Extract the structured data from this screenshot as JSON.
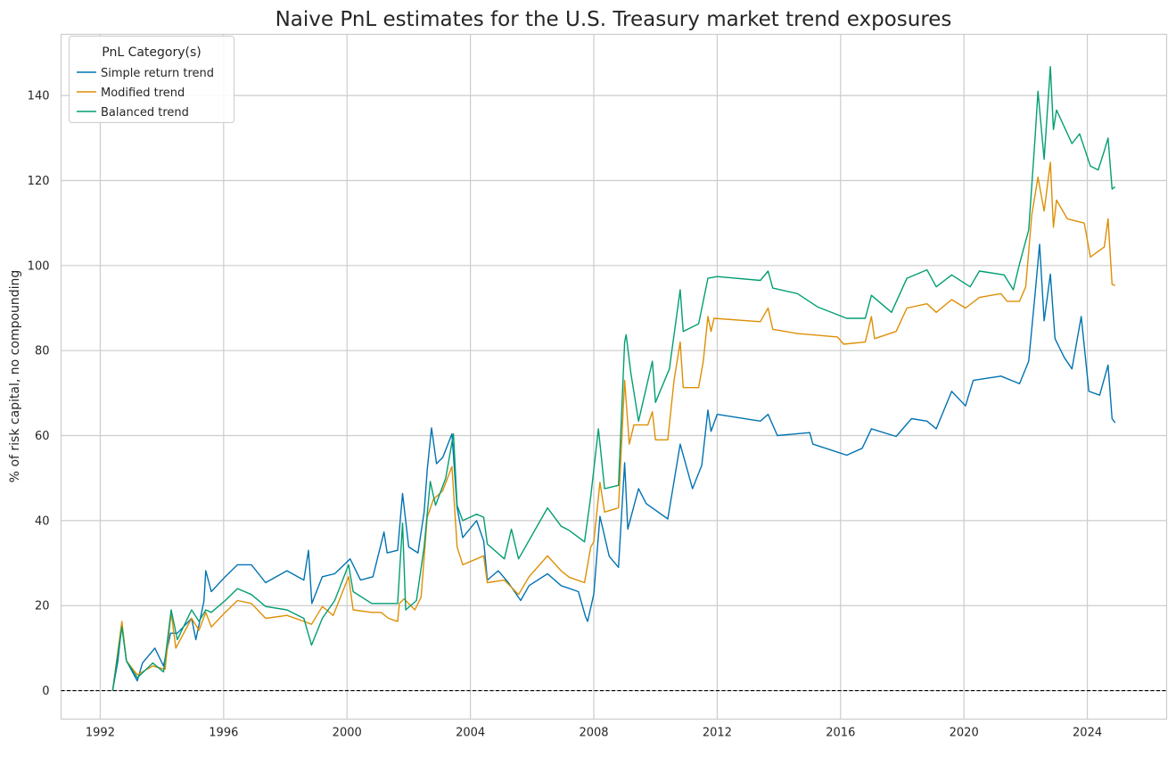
{
  "chart_data": {
    "type": "line",
    "title": "Naive PnL estimates for the U.S. Treasury market trend exposures",
    "xlabel": "",
    "ylabel": "% of risk capital, no compounding",
    "xlim": [
      1990.73,
      2026.57
    ],
    "ylim": [
      -6.7,
      154.4
    ],
    "x_ticks": [
      1992,
      1996,
      2000,
      2004,
      2008,
      2012,
      2016,
      2020,
      2024
    ],
    "x_tick_labels": [
      "1992",
      "1996",
      "2000",
      "2004",
      "2008",
      "2012",
      "2016",
      "2020",
      "2024"
    ],
    "y_ticks": [
      0,
      20,
      40,
      60,
      80,
      100,
      120,
      140
    ],
    "y_tick_labels": [
      "0",
      "20",
      "40",
      "60",
      "80",
      "100",
      "120",
      "140"
    ],
    "grid": true,
    "reference_line": {
      "y": 0,
      "style": "dashed",
      "color": "#000000"
    },
    "legend": {
      "title": "PnL Category(s)",
      "placement": "top-left"
    },
    "series": [
      {
        "name": "Simple return trend",
        "color": "#0173b2",
        "points": [
          [
            1992.4,
            0
          ],
          [
            1992.57,
            7
          ],
          [
            1992.7,
            15.6
          ],
          [
            1992.85,
            7
          ],
          [
            1993.2,
            2.3
          ],
          [
            1993.37,
            6.5
          ],
          [
            1993.77,
            10
          ],
          [
            1994.05,
            5.8
          ],
          [
            1994.28,
            13.5
          ],
          [
            1994.5,
            13.5
          ],
          [
            1994.96,
            17
          ],
          [
            1995.1,
            12
          ],
          [
            1995.36,
            21
          ],
          [
            1995.42,
            28.2
          ],
          [
            1995.6,
            23.3
          ],
          [
            1996.05,
            26.8
          ],
          [
            1996.45,
            29.6
          ],
          [
            1996.9,
            29.6
          ],
          [
            1997.36,
            25.4
          ],
          [
            1998.05,
            28.2
          ],
          [
            1998.6,
            26
          ],
          [
            1998.75,
            33
          ],
          [
            1998.86,
            20.5
          ],
          [
            1999.2,
            26.8
          ],
          [
            1999.6,
            27.5
          ],
          [
            2000.1,
            31
          ],
          [
            2000.44,
            26
          ],
          [
            2000.84,
            26.8
          ],
          [
            2001.2,
            37.3
          ],
          [
            2001.3,
            32.4
          ],
          [
            2001.64,
            33
          ],
          [
            2001.8,
            46.4
          ],
          [
            2002.0,
            33.8
          ],
          [
            2002.3,
            32.4
          ],
          [
            2002.5,
            42
          ],
          [
            2002.6,
            52
          ],
          [
            2002.74,
            61.8
          ],
          [
            2002.9,
            53.4
          ],
          [
            2003.1,
            54.8
          ],
          [
            2003.4,
            60.4
          ],
          [
            2003.57,
            43
          ],
          [
            2003.75,
            36
          ],
          [
            2004.2,
            40
          ],
          [
            2004.43,
            35.2
          ],
          [
            2004.55,
            26
          ],
          [
            2004.9,
            28.2
          ],
          [
            2005.23,
            25.4
          ],
          [
            2005.63,
            21.2
          ],
          [
            2005.9,
            24.7
          ],
          [
            2006.5,
            27.5
          ],
          [
            2006.94,
            24.7
          ],
          [
            2007.5,
            23.3
          ],
          [
            2007.73,
            17.4
          ],
          [
            2007.8,
            16.3
          ],
          [
            2008.0,
            22.7
          ],
          [
            2008.2,
            41
          ],
          [
            2008.5,
            31.6
          ],
          [
            2008.8,
            29
          ],
          [
            2009.0,
            53.6
          ],
          [
            2009.1,
            38
          ],
          [
            2009.45,
            47.5
          ],
          [
            2009.7,
            44
          ],
          [
            2010.4,
            40.4
          ],
          [
            2010.8,
            58
          ],
          [
            2011.2,
            47.5
          ],
          [
            2011.5,
            53
          ],
          [
            2011.7,
            66
          ],
          [
            2011.8,
            61
          ],
          [
            2012.0,
            65
          ],
          [
            2013.4,
            63.4
          ],
          [
            2013.65,
            65
          ],
          [
            2013.95,
            60
          ],
          [
            2015.0,
            60.7
          ],
          [
            2015.1,
            58
          ],
          [
            2016.2,
            55.4
          ],
          [
            2016.7,
            57
          ],
          [
            2017.0,
            61.6
          ],
          [
            2017.8,
            59.8
          ],
          [
            2018.3,
            64
          ],
          [
            2018.8,
            63.4
          ],
          [
            2019.1,
            61.6
          ],
          [
            2019.6,
            70.4
          ],
          [
            2020.05,
            67
          ],
          [
            2020.3,
            73
          ],
          [
            2021.2,
            74
          ],
          [
            2021.8,
            72.2
          ],
          [
            2022.1,
            77.5
          ],
          [
            2022.3,
            93
          ],
          [
            2022.45,
            105
          ],
          [
            2022.6,
            87
          ],
          [
            2022.8,
            98
          ],
          [
            2022.95,
            82.8
          ],
          [
            2023.25,
            78.4
          ],
          [
            2023.5,
            75.7
          ],
          [
            2023.8,
            88
          ],
          [
            2024.05,
            70.4
          ],
          [
            2024.4,
            69.5
          ],
          [
            2024.67,
            76.6
          ],
          [
            2024.8,
            64
          ],
          [
            2024.9,
            63
          ]
        ]
      },
      {
        "name": "Modified trend",
        "color": "#de8f05",
        "points": [
          [
            1992.4,
            0
          ],
          [
            1992.7,
            16.3
          ],
          [
            1992.85,
            7
          ],
          [
            1993.2,
            3.7
          ],
          [
            1993.7,
            5.8
          ],
          [
            1994.1,
            5
          ],
          [
            1994.3,
            18.4
          ],
          [
            1994.45,
            10
          ],
          [
            1994.96,
            17
          ],
          [
            1995.2,
            14.2
          ],
          [
            1995.42,
            18.4
          ],
          [
            1995.6,
            15
          ],
          [
            1996.05,
            18.4
          ],
          [
            1996.45,
            21.2
          ],
          [
            1996.9,
            20.5
          ],
          [
            1997.36,
            17
          ],
          [
            1998.05,
            17.7
          ],
          [
            1998.6,
            16.3
          ],
          [
            1998.85,
            15.6
          ],
          [
            1999.2,
            19.8
          ],
          [
            1999.55,
            17.7
          ],
          [
            2000.05,
            26.8
          ],
          [
            2000.2,
            19
          ],
          [
            2000.8,
            18.4
          ],
          [
            2001.1,
            18.4
          ],
          [
            2001.35,
            17
          ],
          [
            2001.64,
            16.3
          ],
          [
            2001.7,
            20.5
          ],
          [
            2001.85,
            21.6
          ],
          [
            2002.2,
            19
          ],
          [
            2002.4,
            22
          ],
          [
            2002.6,
            40.8
          ],
          [
            2002.8,
            45
          ],
          [
            2003.1,
            47
          ],
          [
            2003.4,
            52.7
          ],
          [
            2003.57,
            33.8
          ],
          [
            2003.75,
            29.6
          ],
          [
            2004.2,
            31
          ],
          [
            2004.43,
            31.7
          ],
          [
            2004.55,
            25.4
          ],
          [
            2005.1,
            26
          ],
          [
            2005.56,
            22.6
          ],
          [
            2005.9,
            26.8
          ],
          [
            2006.5,
            31.7
          ],
          [
            2006.94,
            28.2
          ],
          [
            2007.2,
            26.7
          ],
          [
            2007.7,
            25.4
          ],
          [
            2007.9,
            33.8
          ],
          [
            2008.0,
            35
          ],
          [
            2008.2,
            49
          ],
          [
            2008.35,
            42
          ],
          [
            2008.8,
            43
          ],
          [
            2009.0,
            73
          ],
          [
            2009.15,
            58
          ],
          [
            2009.3,
            62.5
          ],
          [
            2009.75,
            62.5
          ],
          [
            2009.9,
            65.6
          ],
          [
            2010.0,
            59
          ],
          [
            2010.4,
            59
          ],
          [
            2010.6,
            73
          ],
          [
            2010.8,
            82
          ],
          [
            2010.9,
            71.3
          ],
          [
            2011.4,
            71.3
          ],
          [
            2011.55,
            77.5
          ],
          [
            2011.7,
            88
          ],
          [
            2011.8,
            84.5
          ],
          [
            2011.9,
            87.6
          ],
          [
            2013.4,
            86.8
          ],
          [
            2013.65,
            90
          ],
          [
            2013.8,
            85
          ],
          [
            2014.6,
            84
          ],
          [
            2015.9,
            83.2
          ],
          [
            2016.1,
            81.5
          ],
          [
            2016.8,
            82
          ],
          [
            2017.0,
            88
          ],
          [
            2017.1,
            82.8
          ],
          [
            2017.8,
            84.5
          ],
          [
            2018.15,
            90
          ],
          [
            2018.8,
            91
          ],
          [
            2019.1,
            89
          ],
          [
            2019.6,
            92
          ],
          [
            2020.05,
            90
          ],
          [
            2020.5,
            92.5
          ],
          [
            2021.2,
            93.4
          ],
          [
            2021.4,
            91.6
          ],
          [
            2021.8,
            91.6
          ],
          [
            2022.0,
            95
          ],
          [
            2022.2,
            112
          ],
          [
            2022.4,
            120.8
          ],
          [
            2022.6,
            112.8
          ],
          [
            2022.8,
            124.3
          ],
          [
            2022.9,
            109
          ],
          [
            2023.0,
            115.4
          ],
          [
            2023.35,
            111
          ],
          [
            2023.9,
            110
          ],
          [
            2024.1,
            102
          ],
          [
            2024.55,
            104.4
          ],
          [
            2024.67,
            111
          ],
          [
            2024.8,
            95.6
          ],
          [
            2024.9,
            95.3
          ]
        ]
      },
      {
        "name": "Balanced trend",
        "color": "#029e73",
        "points": [
          [
            1992.4,
            0
          ],
          [
            1992.7,
            15
          ],
          [
            1992.85,
            7
          ],
          [
            1993.2,
            3
          ],
          [
            1993.7,
            6.5
          ],
          [
            1994.05,
            4.4
          ],
          [
            1994.3,
            19
          ],
          [
            1994.5,
            12
          ],
          [
            1994.96,
            19
          ],
          [
            1995.2,
            16.3
          ],
          [
            1995.42,
            19
          ],
          [
            1995.6,
            18.4
          ],
          [
            1996.05,
            21.2
          ],
          [
            1996.45,
            24
          ],
          [
            1996.9,
            22.6
          ],
          [
            1997.36,
            19.8
          ],
          [
            1998.05,
            19
          ],
          [
            1998.6,
            17
          ],
          [
            1998.85,
            10.7
          ],
          [
            1999.2,
            17
          ],
          [
            1999.6,
            21.2
          ],
          [
            2000.05,
            29.6
          ],
          [
            2000.2,
            23.3
          ],
          [
            2000.8,
            20.5
          ],
          [
            2001.1,
            20.5
          ],
          [
            2001.64,
            20.5
          ],
          [
            2001.8,
            39.4
          ],
          [
            2001.9,
            19
          ],
          [
            2002.25,
            21.2
          ],
          [
            2002.5,
            33.8
          ],
          [
            2002.7,
            49.2
          ],
          [
            2002.87,
            43.6
          ],
          [
            2003.2,
            50
          ],
          [
            2003.45,
            60.4
          ],
          [
            2003.57,
            43.6
          ],
          [
            2003.75,
            40
          ],
          [
            2004.2,
            41.5
          ],
          [
            2004.43,
            40.8
          ],
          [
            2004.55,
            34.5
          ],
          [
            2005.1,
            31
          ],
          [
            2005.33,
            38
          ],
          [
            2005.56,
            31
          ],
          [
            2006.5,
            43
          ],
          [
            2006.94,
            38.7
          ],
          [
            2007.2,
            37.7
          ],
          [
            2007.7,
            35
          ],
          [
            2007.9,
            45.7
          ],
          [
            2008.15,
            61.6
          ],
          [
            2008.35,
            47.5
          ],
          [
            2008.8,
            48.3
          ],
          [
            2009.0,
            82
          ],
          [
            2009.05,
            83.7
          ],
          [
            2009.2,
            74.8
          ],
          [
            2009.45,
            63.4
          ],
          [
            2009.9,
            77.5
          ],
          [
            2010.0,
            67.8
          ],
          [
            2010.45,
            75.7
          ],
          [
            2010.8,
            94.3
          ],
          [
            2010.9,
            84.5
          ],
          [
            2011.4,
            86.3
          ],
          [
            2011.7,
            97
          ],
          [
            2012.0,
            97.4
          ],
          [
            2013.4,
            96.5
          ],
          [
            2013.65,
            98.7
          ],
          [
            2013.8,
            94.7
          ],
          [
            2014.6,
            93.4
          ],
          [
            2015.25,
            90.3
          ],
          [
            2016.2,
            87.6
          ],
          [
            2016.8,
            87.6
          ],
          [
            2017.0,
            93
          ],
          [
            2017.65,
            89
          ],
          [
            2018.15,
            97
          ],
          [
            2018.8,
            99
          ],
          [
            2019.1,
            95
          ],
          [
            2019.6,
            97.8
          ],
          [
            2020.2,
            95
          ],
          [
            2020.5,
            98.7
          ],
          [
            2021.3,
            97.8
          ],
          [
            2021.6,
            94.3
          ],
          [
            2021.8,
            100.4
          ],
          [
            2022.1,
            108.4
          ],
          [
            2022.3,
            129.6
          ],
          [
            2022.4,
            141
          ],
          [
            2022.6,
            125
          ],
          [
            2022.8,
            146.8
          ],
          [
            2022.9,
            132
          ],
          [
            2023.0,
            136.6
          ],
          [
            2023.5,
            128.7
          ],
          [
            2023.75,
            131
          ],
          [
            2024.1,
            123.4
          ],
          [
            2024.35,
            122.5
          ],
          [
            2024.55,
            127
          ],
          [
            2024.67,
            130
          ],
          [
            2024.8,
            118
          ],
          [
            2024.9,
            118.5
          ]
        ]
      }
    ]
  }
}
